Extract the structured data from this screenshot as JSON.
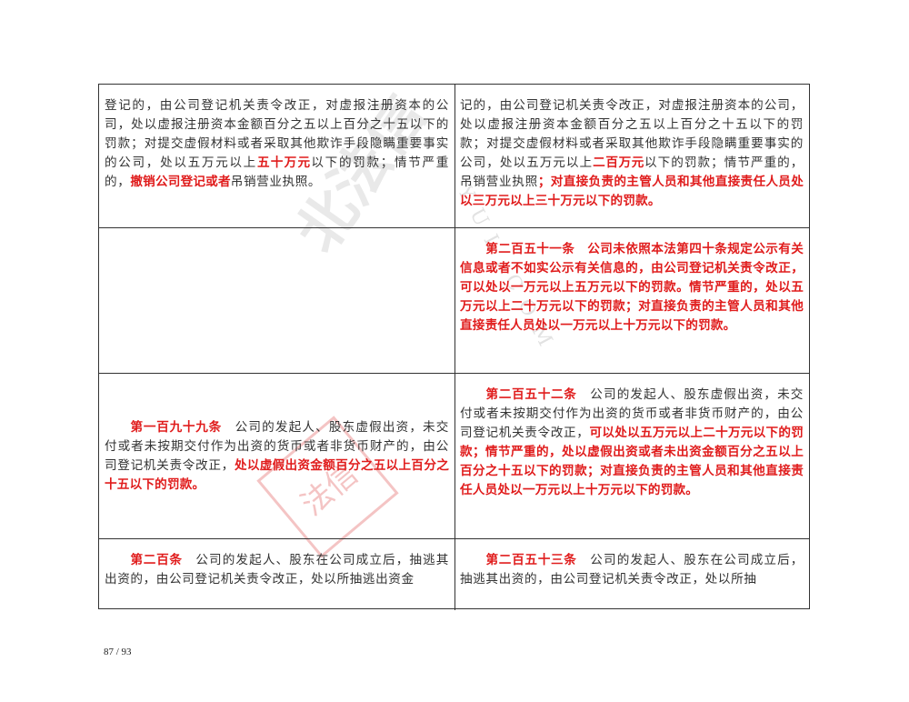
{
  "rows": [
    {
      "left": {
        "valign": "top",
        "indent": false,
        "segments": [
          {
            "text": "登记的，由公司登记机关责令改正，对虚报注册资本的公司，处以虚报注册资本金额百分之五以上百分之十五以下的罚款；对提交虚假材料或者采取其他欺诈手段隐瞒重要事实的公司，处以五万元以上",
            "red": false
          },
          {
            "text": "五十万元",
            "red": true
          },
          {
            "text": "以下的罚款；情节严重的，",
            "red": false
          },
          {
            "text": "撤销公司登记或者",
            "red": true
          },
          {
            "text": "吊销营业执照。",
            "red": false
          }
        ]
      },
      "right": {
        "valign": "top",
        "indent": false,
        "segments": [
          {
            "text": "记的，由公司登记机关责令改正，对虚报注册资本的公司，处以虚报注册资本金额百分之五以上百分之十五以下的罚款；对提交虚假材料或者采取其他欺诈手段隐瞒重要事实的公司，处以五万元以上",
            "red": false
          },
          {
            "text": "二百万元",
            "red": true
          },
          {
            "text": "以下的罚款；情节严重的，吊销营业执照",
            "red": false
          },
          {
            "text": "；对直接负责的主管人员和其他直接责任人员处以三万元以上三十万元以下的罚款。",
            "red": true
          }
        ]
      }
    },
    {
      "left": {
        "valign": "top",
        "indent": false,
        "segments": []
      },
      "right": {
        "valign": "top",
        "indent": true,
        "segments": [
          {
            "text": "第二百五十一条　公司未依照本法第四十条规定公示有关信息或者不如实公示有关信息的，由公司登记机关责令改正，可以处以一万元以上五万元以下的罚款。情节严重的，处以五万元以上二十万元以下的罚款；对直接负责的主管人员和其他直接责任人员处以一万元以上十万元以下的罚款。",
            "red": true
          }
        ]
      }
    },
    {
      "left": {
        "valign": "center",
        "indent": true,
        "segments": [
          {
            "text": "第一百九十九条",
            "red": true
          },
          {
            "text": "　公司的发起人、股东虚假出资，未交付或者未按期交付作为出资的货币或者非货币财产的，由公司登记机关责令改正，",
            "red": false
          },
          {
            "text": "处以虚假出资金额百分之五以上百分之十五以下的罚款。",
            "red": true
          }
        ]
      },
      "right": {
        "valign": "top",
        "indent": true,
        "segments": [
          {
            "text": "第二百五十二条",
            "red": true
          },
          {
            "text": "　公司的发起人、股东虚假出资，未交付或者未按期交付作为出资的货币或者非货币财产的，由公司登记机关责令改正，",
            "red": false
          },
          {
            "text": "可以处以五万元以上二十万元以下的罚款；情节严重的，处以虚假出资或者未出资金额百分之五以上百分之十五以下的罚款；对直接负责的主管人员和其他直接责任人员处以一万元以上十万元以下的罚款。",
            "red": true
          }
        ]
      }
    },
    {
      "left": {
        "valign": "top",
        "indent": true,
        "segments": [
          {
            "text": "第二百条",
            "red": true
          },
          {
            "text": "　公司的发起人、股东在公司成立后，抽逃其出资的，由公司登记机关责令改正，处以所抽逃出资金",
            "red": false
          }
        ]
      },
      "right": {
        "valign": "top",
        "indent": true,
        "segments": [
          {
            "text": "第二百五十三条",
            "red": true
          },
          {
            "text": "　公司的发起人、股东在公司成立后，抽逃其出资的，由公司登记机关责令改正，处以所抽",
            "red": false
          }
        ]
      }
    }
  ],
  "page_number": "87 / 93",
  "watermark": {
    "text": "北法信",
    "seal": "法信",
    "latin": "YUL.COM"
  },
  "colors": {
    "amended_text": "#e01c1c",
    "body_text": "#333333",
    "border": "#333333"
  }
}
